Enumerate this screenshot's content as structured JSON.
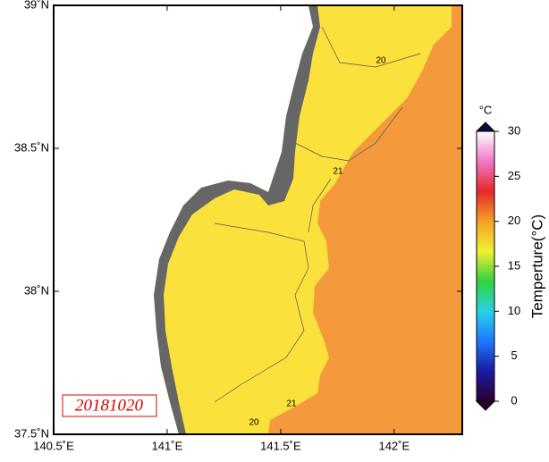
{
  "map": {
    "xlim": [
      140.5,
      142.3
    ],
    "ylim": [
      37.5,
      39
    ],
    "xticks": [
      {
        "value": 140.5,
        "label": "140.5˚E"
      },
      {
        "value": 141,
        "label": "141˚E"
      },
      {
        "value": 141.5,
        "label": "141.5˚E"
      },
      {
        "value": 142,
        "label": "142˚E"
      }
    ],
    "yticks": [
      {
        "value": 37.5,
        "label": "37.5˚N"
      },
      {
        "value": 38,
        "label": "38˚N"
      },
      {
        "value": 38.5,
        "label": "38.5˚N"
      },
      {
        "value": 39,
        "label": "39˚N"
      }
    ],
    "contour_labels": [
      20,
      21,
      21,
      20
    ],
    "date": "20181020"
  },
  "colorbar": {
    "unit": "°C",
    "title": "Temperture(°C)",
    "lim": [
      0,
      30
    ],
    "ticks": [
      0,
      5,
      10,
      15,
      20,
      25,
      30
    ],
    "colors": [
      "#2a0030",
      "#1a1aa0",
      "#1e78ff",
      "#28d2e6",
      "#32d23c",
      "#f0f032",
      "#f5a028",
      "#e62828",
      "#f078c8",
      "#ffffff"
    ]
  }
}
